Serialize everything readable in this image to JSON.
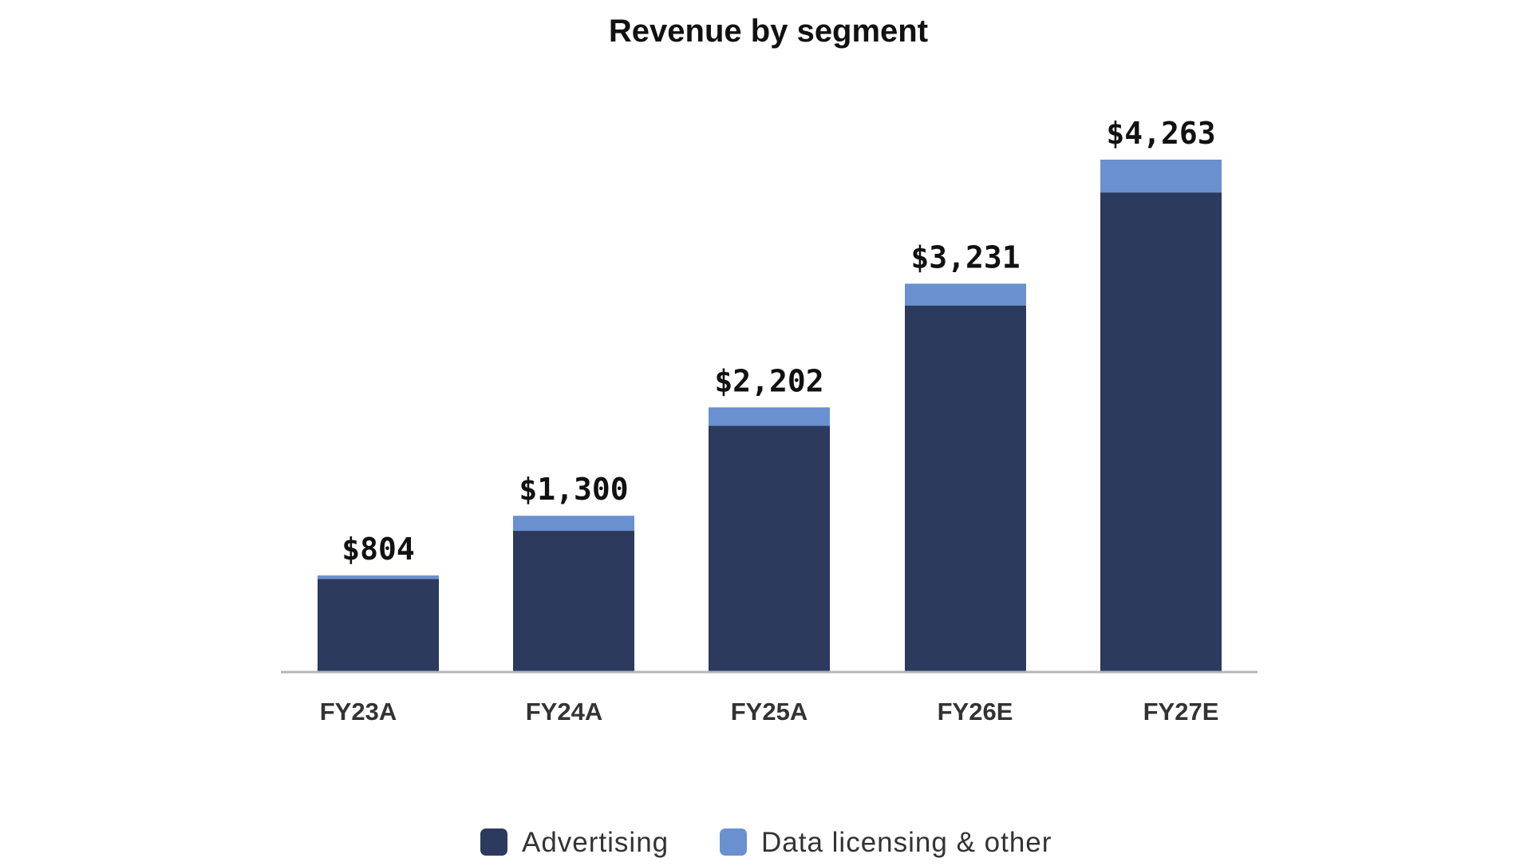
{
  "chart_data": {
    "type": "bar",
    "stacked": true,
    "title": "Revenue by segment",
    "xlabel": "",
    "ylabel": "",
    "ylim": [
      0,
      4263
    ],
    "grid": false,
    "legend_position": "bottom-center",
    "categories": [
      "FY23A",
      "FY24A",
      "FY25A",
      "FY26E",
      "FY27E"
    ],
    "totals": [
      804,
      1300,
      2202,
      3231,
      4263
    ],
    "total_labels": [
      "$804",
      "$1,300",
      "$2,202",
      "$3,231",
      "$4,263"
    ],
    "series": [
      {
        "name": "Advertising",
        "color": "#2c3a5e",
        "values": [
          774,
          1175,
          2050,
          3050,
          3990
        ]
      },
      {
        "name": "Data licensing & other",
        "color": "#6b90cf",
        "values": [
          30,
          125,
          152,
          181,
          273
        ]
      }
    ]
  }
}
